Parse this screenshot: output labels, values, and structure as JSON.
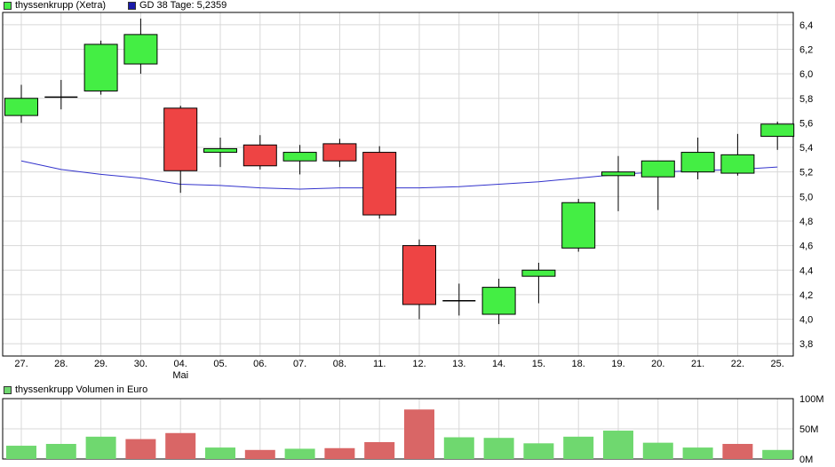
{
  "legend": {
    "price_label": "thyssenkrupp (Xetra)",
    "ma_label": "GD 38 Tage: 5,2359",
    "volume_label": "thyssenkrupp Volumen in Euro"
  },
  "colors": {
    "up": "#44ee44",
    "down": "#ee4444",
    "ma_line": "#3333cc",
    "vol_up": "#6fd86f",
    "vol_down": "#d96666",
    "grid": "#d8d8d8",
    "border": "#000000"
  },
  "chart_data": [
    {
      "type": "candlestick",
      "title": "",
      "categories": [
        "27.",
        "28.",
        "29.",
        "30.",
        "04.",
        "05.",
        "06.",
        "07.",
        "08.",
        "11.",
        "12.",
        "13.",
        "14.",
        "15.",
        "18.",
        "19.",
        "20.",
        "21.",
        "22.",
        "25."
      ],
      "x_sublabels": {
        "04.": "Mai"
      },
      "y_ticks": [
        "3,8",
        "4,0",
        "4,2",
        "4,4",
        "4,6",
        "4,8",
        "5,0",
        "5,2",
        "5,4",
        "5,6",
        "5,8",
        "6,0",
        "6,2",
        "6,4"
      ],
      "ylim": [
        3.7,
        6.5
      ],
      "grid": true,
      "series": [
        {
          "name": "thyssenkrupp (Xetra)",
          "open": [
            5.66,
            5.81,
            5.86,
            6.08,
            5.72,
            5.36,
            5.42,
            5.29,
            5.43,
            5.36,
            4.6,
            4.15,
            4.04,
            4.35,
            4.58,
            5.17,
            5.16,
            5.2,
            5.19,
            5.49
          ],
          "high": [
            5.91,
            5.95,
            6.27,
            6.45,
            5.74,
            5.48,
            5.5,
            5.42,
            5.47,
            5.41,
            4.65,
            4.29,
            4.33,
            4.46,
            4.98,
            5.33,
            5.29,
            5.48,
            5.51,
            5.61
          ],
          "low": [
            5.6,
            5.71,
            5.83,
            6.0,
            5.03,
            5.24,
            5.22,
            5.18,
            5.24,
            4.82,
            4.0,
            4.03,
            3.96,
            4.13,
            4.55,
            4.88,
            4.89,
            5.14,
            5.17,
            5.38
          ],
          "close": [
            5.8,
            5.81,
            6.24,
            6.32,
            5.21,
            5.39,
            5.25,
            5.36,
            5.29,
            4.85,
            4.12,
            4.15,
            4.26,
            4.4,
            4.95,
            5.2,
            5.29,
            5.36,
            5.34,
            5.59
          ]
        },
        {
          "name": "GD 38 Tage: 5,2359",
          "values": [
            5.29,
            5.22,
            5.18,
            5.15,
            5.1,
            5.09,
            5.07,
            5.06,
            5.07,
            5.07,
            5.07,
            5.08,
            5.1,
            5.12,
            5.15,
            5.18,
            5.2,
            5.21,
            5.22,
            5.24
          ]
        }
      ]
    },
    {
      "type": "bar",
      "title": "thyssenkrupp Volumen in Euro",
      "categories": [
        "27.",
        "28.",
        "29.",
        "30.",
        "04.",
        "05.",
        "06.",
        "07.",
        "08.",
        "11.",
        "12.",
        "13.",
        "14.",
        "15.",
        "18.",
        "19.",
        "20.",
        "21.",
        "22.",
        "25."
      ],
      "y_ticks": [
        "0M",
        "50M",
        "100M"
      ],
      "ylim": [
        0,
        100
      ],
      "grid": true,
      "series": [
        {
          "name": "thyssenkrupp Volumen in Euro",
          "values": [
            22,
            25,
            37,
            33,
            43,
            19,
            15,
            17,
            18,
            28,
            82,
            36,
            35,
            26,
            37,
            47,
            27,
            19,
            25,
            15
          ],
          "direction": [
            "up",
            "up",
            "up",
            "down",
            "down",
            "up",
            "down",
            "up",
            "down",
            "down",
            "down",
            "up",
            "up",
            "up",
            "up",
            "up",
            "up",
            "up",
            "down",
            "up"
          ]
        }
      ]
    }
  ]
}
